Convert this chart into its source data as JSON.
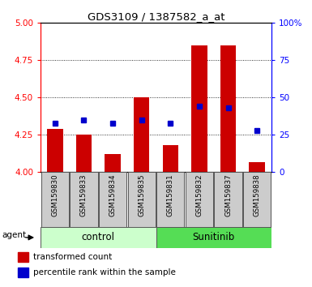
{
  "title": "GDS3109 / 1387582_a_at",
  "samples": [
    "GSM159830",
    "GSM159833",
    "GSM159834",
    "GSM159835",
    "GSM159831",
    "GSM159832",
    "GSM159837",
    "GSM159838"
  ],
  "red_values": [
    4.29,
    4.25,
    4.12,
    4.5,
    4.18,
    4.85,
    4.85,
    4.07
  ],
  "blue_values": [
    33,
    35,
    33,
    35,
    33,
    44,
    43,
    28
  ],
  "ylim_left": [
    4.0,
    5.0
  ],
  "ylim_right": [
    0,
    100
  ],
  "yticks_left": [
    4.0,
    4.25,
    4.5,
    4.75,
    5.0
  ],
  "yticks_right": [
    0,
    25,
    50,
    75,
    100
  ],
  "bar_color": "#cc0000",
  "dot_color": "#0000cc",
  "bar_bottom": 4.0,
  "control_bg": "#ccffcc",
  "sunitinib_bg": "#55dd55",
  "sample_bg": "#cccccc",
  "agent_label": "agent",
  "legend_bar": "transformed count",
  "legend_dot": "percentile rank within the sample",
  "n_control": 4,
  "n_sunitinib": 4
}
